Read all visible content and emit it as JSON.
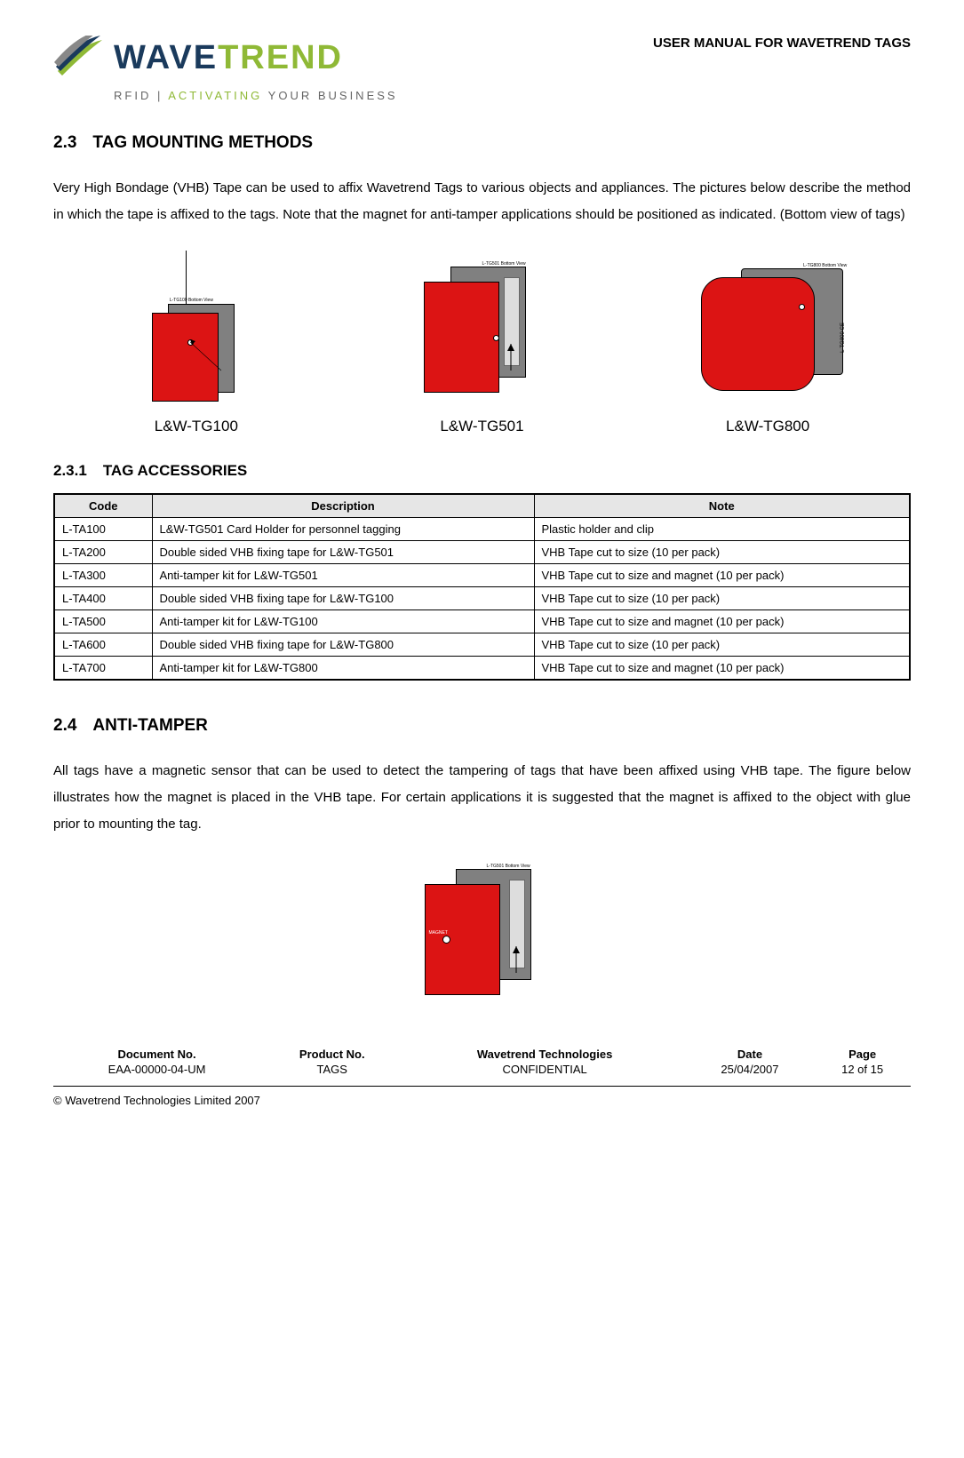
{
  "header": {
    "brand_main_dark": "WAVE",
    "brand_main_light": "TREND",
    "brand_sub_pre": "RFID | ",
    "brand_sub_act": "ACTIVATING",
    "brand_sub_post": " YOUR BUSINESS",
    "doc_title": "USER MANUAL FOR WAVETREND TAGS"
  },
  "section23": {
    "num": "2.3",
    "title": "TAG MOUNTING METHODS",
    "body": "Very High Bondage (VHB) Tape can be used to affix Wavetrend Tags to various objects and appliances. The pictures below describe the method in which the tape is affixed to the tags. Note that the magnet for anti-tamper applications should be positioned as indicated. (Bottom view of tags)"
  },
  "figures": {
    "f1": {
      "caption": "L&W-TG100",
      "tiny": "L-TG100 Bottom View"
    },
    "f2": {
      "caption": "L&W-TG501",
      "tiny": "L-TG501 Bottom View"
    },
    "f3": {
      "caption": "L&W-TG800",
      "tiny": "L-TG800 Bottom View",
      "side": "L-TG800  CE"
    }
  },
  "section231": {
    "num": "2.3.1",
    "title": "TAG ACCESSORIES",
    "columns": [
      "Code",
      "Description",
      "Note"
    ],
    "rows": [
      [
        "L-TA100",
        "L&W-TG501 Card Holder for personnel tagging",
        "Plastic holder and clip"
      ],
      [
        "L-TA200",
        "Double sided VHB fixing tape for L&W-TG501",
        "VHB Tape cut to size (10 per pack)"
      ],
      [
        "L-TA300",
        "Anti-tamper kit for L&W-TG501",
        "VHB Tape cut to size and magnet (10 per pack)"
      ],
      [
        "L-TA400",
        "Double sided VHB fixing tape for L&W-TG100",
        "VHB Tape cut to size (10 per pack)"
      ],
      [
        "L-TA500",
        "Anti-tamper kit for L&W-TG100",
        "VHB Tape cut to size and magnet (10 per pack)"
      ],
      [
        "L-TA600",
        "Double sided VHB fixing tape for L&W-TG800",
        "VHB Tape cut to size (10 per pack)"
      ],
      [
        "L-TA700",
        "Anti-tamper kit for L&W-TG800",
        "VHB Tape cut to size and magnet (10 per pack)"
      ]
    ]
  },
  "section24": {
    "num": "2.4",
    "title": "ANTI-TAMPER",
    "body": "All tags have a magnetic sensor that can be used to detect the tampering of tags that have been affixed using VHB tape. The figure below illustrates how the magnet is placed in the VHB tape. For certain applications it is suggested that the magnet is affixed to the object with glue prior to mounting the tag."
  },
  "figure4": {
    "tiny": "L-TG501 Bottom View",
    "magnet": "MAGNET"
  },
  "footer": {
    "h1": "Document No.",
    "v1": "EAA-00000-04-UM",
    "h2": "Product No.",
    "v2": "TAGS",
    "h3": "Wavetrend Technologies",
    "v3": "CONFIDENTIAL",
    "h4": "Date",
    "v4": "25/04/2007",
    "h5": "Page",
    "v5": "12 of 15",
    "copyright": "© Wavetrend Technologies Limited 2007"
  },
  "colors": {
    "red": "#dc1414",
    "gray": "#808080",
    "brand_dark": "#1a3a5c",
    "brand_green": "#8fb936"
  }
}
